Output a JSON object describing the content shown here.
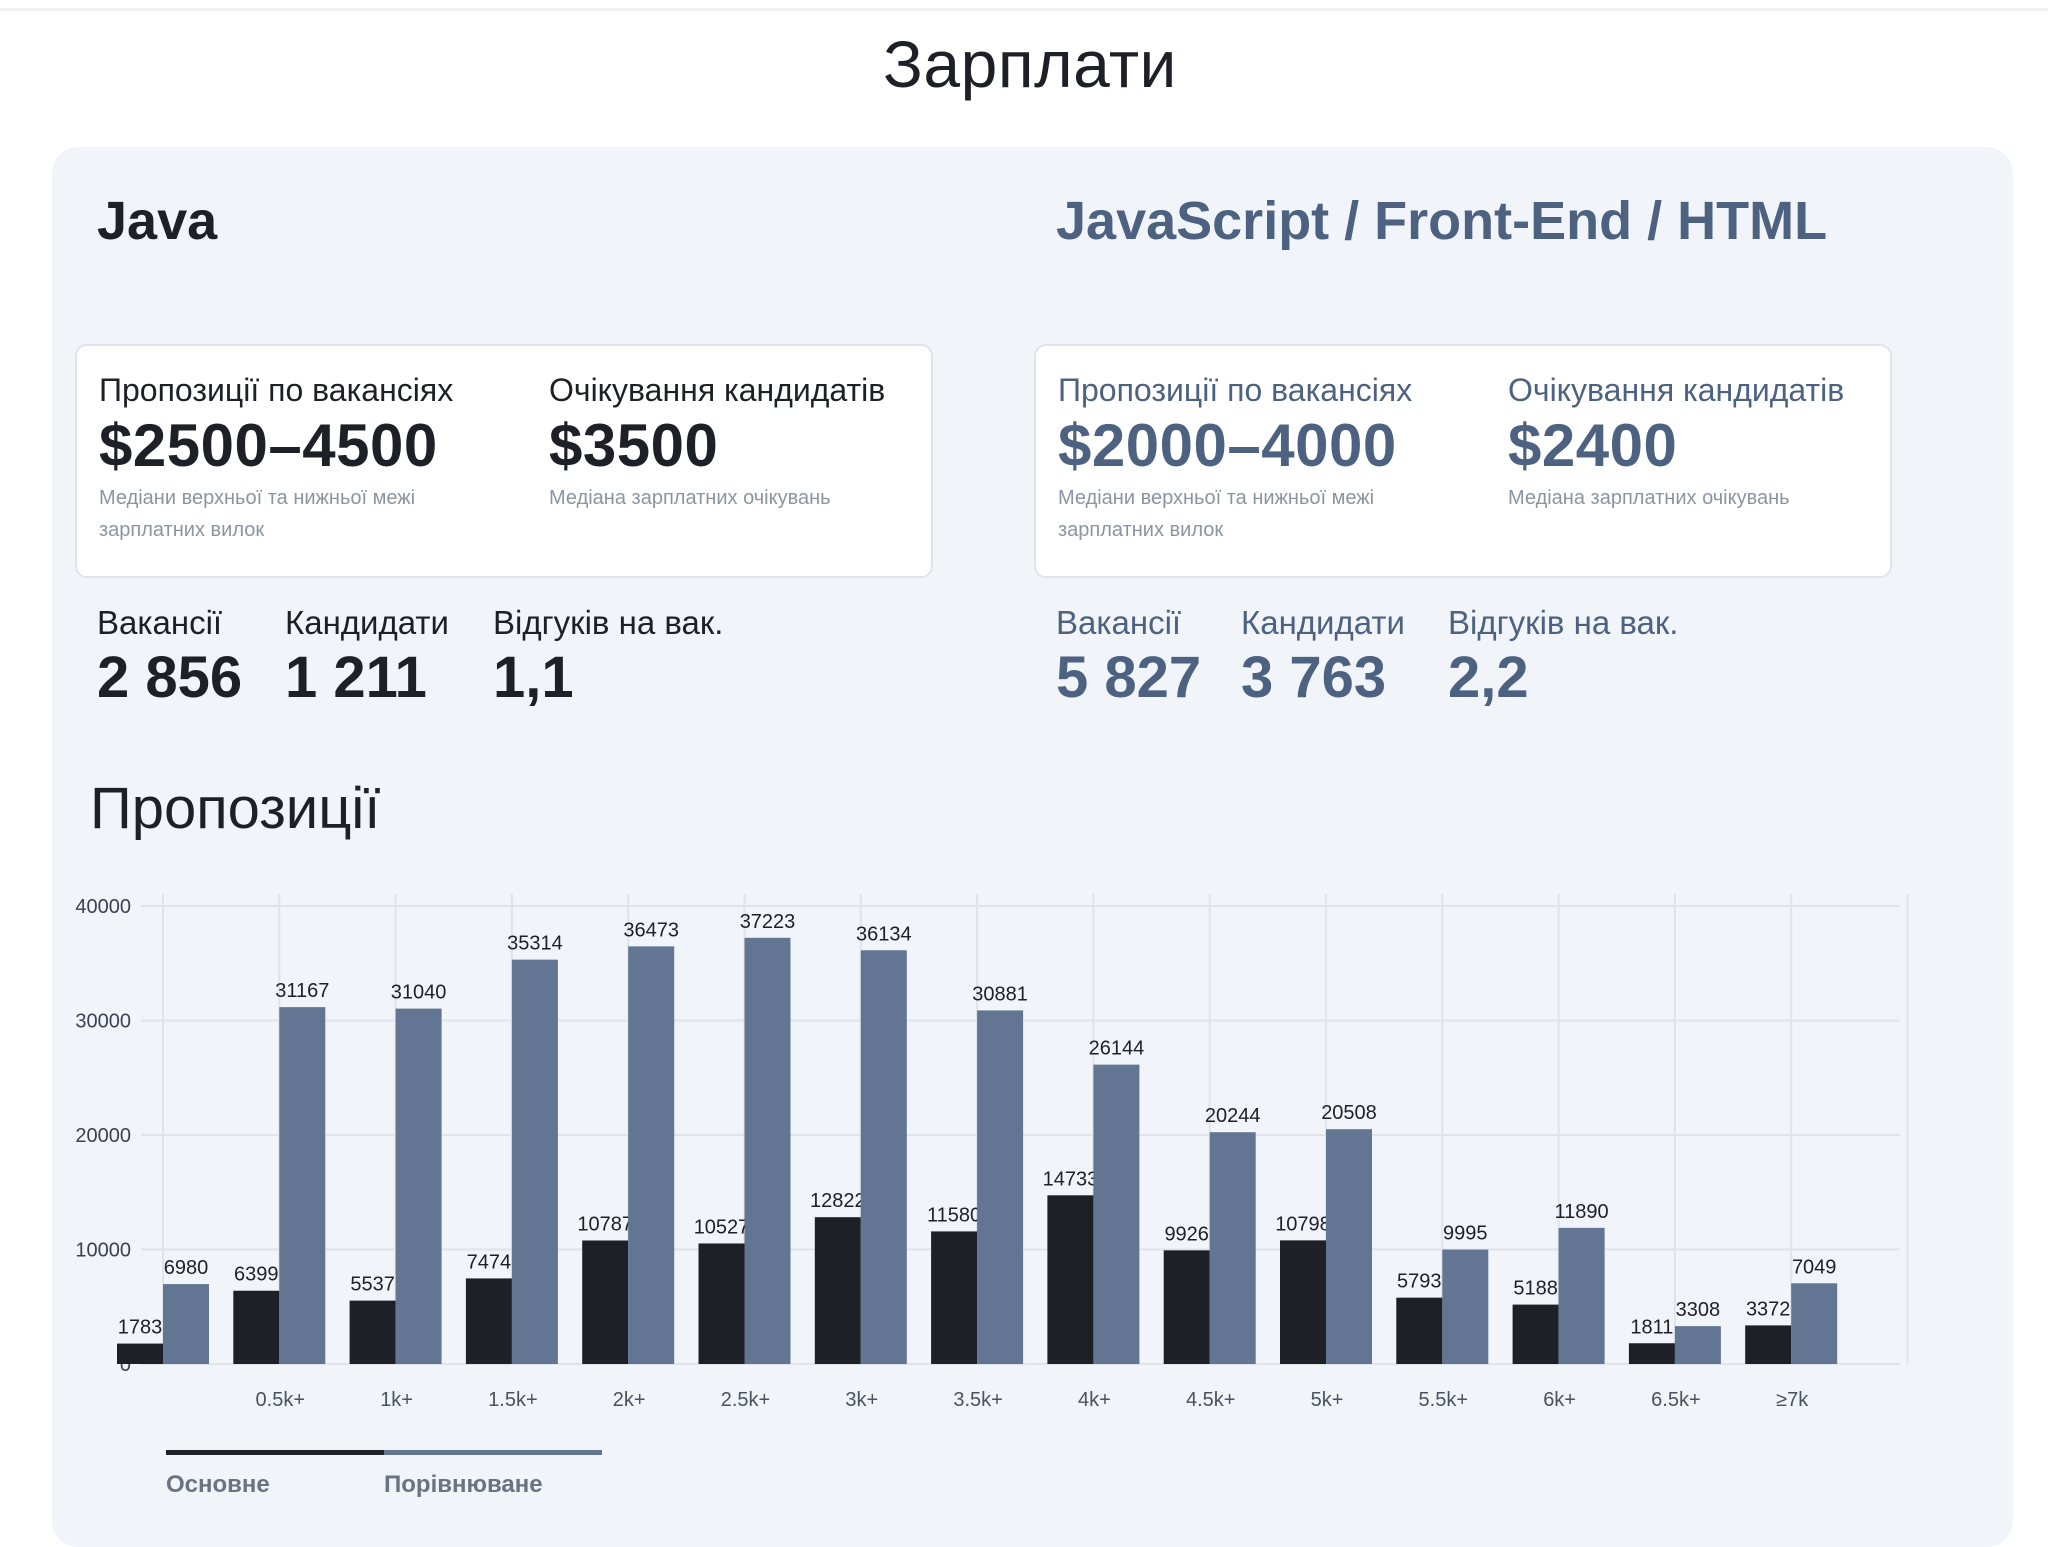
{
  "page": {
    "title": "Зарплати"
  },
  "colors": {
    "primary": "#1d2026",
    "secondary": "#627592",
    "panel_bg": "#f1f4f9"
  },
  "left": {
    "category": "Java",
    "offers": {
      "label": "Пропозиції по вакансіях",
      "value": "$2500–4500",
      "note": "Медіани верхньої та нижньої межі зарплатних вилок"
    },
    "expectations": {
      "label": "Очікування кандидатів",
      "value": "$3500",
      "note": "Медіана зарплатних очікувань"
    },
    "stats": [
      {
        "label": "Вакансії",
        "value": "2 856"
      },
      {
        "label": "Кандидати",
        "value": "1 211"
      },
      {
        "label": "Відгуків на вак.",
        "value": "1,1"
      }
    ]
  },
  "right": {
    "category": "JavaScript / Front-End / HTML",
    "offers": {
      "label": "Пропозиції по вакансіях",
      "value": "$2000–4000",
      "note": "Медіани верхньої та нижньої межі зарплатних вилок"
    },
    "expectations": {
      "label": "Очікування кандидатів",
      "value": "$2400",
      "note": "Медіана зарплатних очікувань"
    },
    "stats": [
      {
        "label": "Вакансії",
        "value": "5 827"
      },
      {
        "label": "Кандидати",
        "value": "3 763"
      },
      {
        "label": "Відгуків на вак.",
        "value": "2,2"
      }
    ]
  },
  "section": {
    "title": "Пропозиції"
  },
  "chart_data": {
    "type": "bar",
    "title": "Пропозиції",
    "categories": [
      "",
      "0.5k+",
      "1k+",
      "1.5k+",
      "2k+",
      "2.5k+",
      "3k+",
      "3.5k+",
      "4k+",
      "4.5k+",
      "5k+",
      "5.5k+",
      "6k+",
      "6.5k+",
      "≥7k"
    ],
    "series": [
      {
        "name": "Основне",
        "color": "#1d2026",
        "values": [
          1783,
          6399,
          5537,
          7474,
          10787,
          10527,
          12822,
          11580,
          14733,
          9926,
          10798,
          5793,
          5188,
          1811,
          3372
        ]
      },
      {
        "name": "Порівнюване",
        "color": "#627592",
        "values": [
          6980,
          31167,
          31040,
          35314,
          36473,
          37223,
          36134,
          30881,
          26144,
          20244,
          20508,
          9995,
          11890,
          3308,
          7049
        ]
      }
    ],
    "ylim": [
      0,
      40000
    ],
    "yticks": [
      0,
      10000,
      20000,
      30000,
      40000
    ],
    "grid": true,
    "legend": "bottom-left"
  }
}
